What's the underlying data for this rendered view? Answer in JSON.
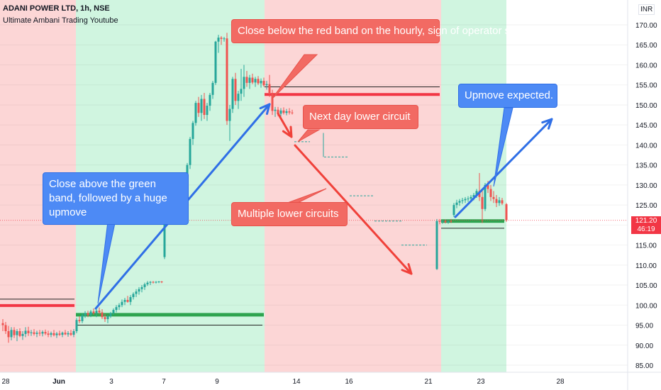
{
  "header": {
    "title": "ADANI POWER LTD, 1h, NSE",
    "subtitle": "Ultimate Ambani Trading Youtube"
  },
  "chart_data": {
    "type": "candlestick",
    "currency": "INR",
    "ylim": [
      82,
      176
    ],
    "y_ticks": [
      85,
      90,
      95,
      100,
      105,
      110,
      115,
      120,
      125,
      130,
      135,
      140,
      145,
      150,
      155,
      160,
      165,
      170
    ],
    "x_ticks": [
      "28",
      "Jun",
      "3",
      "7",
      "9",
      "14",
      "16",
      "21",
      "23",
      "28"
    ],
    "last_price": "121.20",
    "countdown": "46:19",
    "colors": {
      "up": "#26a69a",
      "down": "#ef5350",
      "green_zone": "#d0f5e0",
      "red_zone": "#fcd6d6",
      "blue_arrow": "#2f6fe6",
      "red_arrow": "#f0413a"
    },
    "annotations": {
      "red_band": "Close below the red band on the hourly, sign of operator shorting the stock",
      "next_day": "Next day lower circuit",
      "green_band": "Close above the green band, followed by a huge upmove",
      "multiple": "Multiple lower circuits",
      "upmove": "Upmove expected."
    },
    "candles": [
      {
        "t": 4,
        "o": 95.5,
        "h": 96.5,
        "l": 93.5,
        "c": 95.0
      },
      {
        "t": 8,
        "o": 95.0,
        "h": 95.8,
        "l": 92.8,
        "c": 93.5
      },
      {
        "t": 12,
        "o": 93.5,
        "h": 94.8,
        "l": 90.6,
        "c": 92.0
      },
      {
        "t": 16,
        "o": 92.0,
        "h": 94.5,
        "l": 91.2,
        "c": 93.8
      },
      {
        "t": 20,
        "o": 93.8,
        "h": 94.5,
        "l": 91.8,
        "c": 92.5
      },
      {
        "t": 24,
        "o": 92.5,
        "h": 94.0,
        "l": 91.0,
        "c": 93.5
      },
      {
        "t": 28,
        "o": 93.5,
        "h": 94.2,
        "l": 92.0,
        "c": 92.3
      },
      {
        "t": 32,
        "o": 92.3,
        "h": 93.5,
        "l": 91.3,
        "c": 92.8
      },
      {
        "t": 36,
        "o": 92.8,
        "h": 94.5,
        "l": 92.0,
        "c": 93.6
      },
      {
        "t": 40,
        "o": 93.6,
        "h": 94.6,
        "l": 92.3,
        "c": 93.0
      },
      {
        "t": 44,
        "o": 93.0,
        "h": 93.8,
        "l": 92.3,
        "c": 93.2
      },
      {
        "t": 48,
        "o": 93.2,
        "h": 94.0,
        "l": 92.4,
        "c": 92.8
      },
      {
        "t": 52,
        "o": 92.8,
        "h": 93.6,
        "l": 92.0,
        "c": 93.1
      },
      {
        "t": 56,
        "o": 93.1,
        "h": 93.8,
        "l": 92.3,
        "c": 92.9
      },
      {
        "t": 60,
        "o": 92.9,
        "h": 93.7,
        "l": 92.2,
        "c": 93.3
      },
      {
        "t": 64,
        "o": 93.3,
        "h": 93.9,
        "l": 92.5,
        "c": 92.9
      },
      {
        "t": 68,
        "o": 92.9,
        "h": 93.6,
        "l": 92.0,
        "c": 92.6
      },
      {
        "t": 72,
        "o": 92.6,
        "h": 93.4,
        "l": 92.0,
        "c": 93.0
      },
      {
        "t": 76,
        "o": 93.0,
        "h": 93.8,
        "l": 92.2,
        "c": 92.5
      },
      {
        "t": 80,
        "o": 92.5,
        "h": 93.3,
        "l": 91.8,
        "c": 92.9
      },
      {
        "t": 84,
        "o": 92.9,
        "h": 93.6,
        "l": 92.3,
        "c": 92.6
      },
      {
        "t": 88,
        "o": 92.6,
        "h": 93.4,
        "l": 92.0,
        "c": 93.1
      },
      {
        "t": 92,
        "o": 93.1,
        "h": 93.8,
        "l": 92.5,
        "c": 92.7
      },
      {
        "t": 96,
        "o": 92.7,
        "h": 93.5,
        "l": 92.1,
        "c": 93.0
      },
      {
        "t": 100,
        "o": 93.0,
        "h": 93.8,
        "l": 92.3,
        "c": 92.6
      },
      {
        "t": 104,
        "o": 92.6,
        "h": 94.0,
        "l": 92.0,
        "c": 93.5
      },
      {
        "t": 108,
        "o": 93.5,
        "h": 96.8,
        "l": 93.0,
        "c": 96.3
      },
      {
        "t": 112,
        "o": 96.3,
        "h": 97.2,
        "l": 95.5,
        "c": 96.0
      },
      {
        "t": 116,
        "o": 96.0,
        "h": 98.0,
        "l": 95.5,
        "c": 97.4
      },
      {
        "t": 120,
        "o": 97.4,
        "h": 98.5,
        "l": 96.8,
        "c": 98.0
      },
      {
        "t": 124,
        "o": 98.0,
        "h": 98.6,
        "l": 97.0,
        "c": 97.5
      },
      {
        "t": 128,
        "o": 97.5,
        "h": 98.8,
        "l": 97.0,
        "c": 98.4
      },
      {
        "t": 132,
        "o": 98.4,
        "h": 99.2,
        "l": 97.6,
        "c": 98.0
      },
      {
        "t": 136,
        "o": 98.0,
        "h": 99.0,
        "l": 97.0,
        "c": 98.6
      },
      {
        "t": 140,
        "o": 98.6,
        "h": 99.4,
        "l": 97.8,
        "c": 98.2
      },
      {
        "t": 144,
        "o": 98.2,
        "h": 99.0,
        "l": 96.5,
        "c": 97.0
      },
      {
        "t": 148,
        "o": 97.0,
        "h": 97.8,
        "l": 95.8,
        "c": 96.5
      },
      {
        "t": 152,
        "o": 96.5,
        "h": 97.5,
        "l": 95.5,
        "c": 97.2
      },
      {
        "t": 156,
        "o": 97.2,
        "h": 98.3,
        "l": 96.8,
        "c": 98.0
      },
      {
        "t": 160,
        "o": 98.0,
        "h": 99.2,
        "l": 97.6,
        "c": 98.8
      },
      {
        "t": 164,
        "o": 98.8,
        "h": 100.0,
        "l": 98.2,
        "c": 99.5
      },
      {
        "t": 168,
        "o": 99.5,
        "h": 100.5,
        "l": 98.8,
        "c": 100.0
      },
      {
        "t": 172,
        "o": 100.0,
        "h": 101.4,
        "l": 99.5,
        "c": 100.8
      },
      {
        "t": 176,
        "o": 100.8,
        "h": 101.8,
        "l": 100.0,
        "c": 101.3
      },
      {
        "t": 180,
        "o": 101.3,
        "h": 102.3,
        "l": 100.6,
        "c": 100.8
      },
      {
        "t": 184,
        "o": 100.8,
        "h": 102.5,
        "l": 100.0,
        "c": 102.0
      },
      {
        "t": 188,
        "o": 102.0,
        "h": 103.2,
        "l": 101.4,
        "c": 102.8
      },
      {
        "t": 192,
        "o": 102.8,
        "h": 104.0,
        "l": 102.0,
        "c": 103.4
      },
      {
        "t": 196,
        "o": 103.4,
        "h": 104.5,
        "l": 102.6,
        "c": 104.0
      },
      {
        "t": 200,
        "o": 104.0,
        "h": 105.0,
        "l": 103.2,
        "c": 104.5
      },
      {
        "t": 204,
        "o": 104.5,
        "h": 105.6,
        "l": 103.8,
        "c": 105.2
      },
      {
        "t": 208,
        "o": 105.2,
        "h": 106.0,
        "l": 104.8,
        "c": 105.6
      },
      {
        "t": 212,
        "o": 105.6,
        "h": 106.0,
        "l": 105.0,
        "c": 105.8
      },
      {
        "t": 216,
        "o": 105.8,
        "h": 106.0,
        "l": 105.4,
        "c": 105.7
      },
      {
        "t": 220,
        "o": 105.7,
        "h": 106.0,
        "l": 105.4,
        "c": 105.8
      },
      {
        "t": 224,
        "o": 105.8,
        "h": 106.0,
        "l": 105.5,
        "c": 105.9
      },
      {
        "t": 228,
        "o": 105.9,
        "h": 106.0,
        "l": 105.5,
        "c": 105.7
      },
      {
        "t": 232,
        "o": 112.0,
        "h": 124.0,
        "l": 111.5,
        "c": 123.5
      },
      {
        "t": 236,
        "o": 123.5,
        "h": 127.0,
        "l": 122.0,
        "c": 126.5
      },
      {
        "t": 240,
        "o": 126.5,
        "h": 127.5,
        "l": 125.0,
        "c": 126.0
      },
      {
        "t": 244,
        "o": 126.0,
        "h": 127.8,
        "l": 125.5,
        "c": 127.2
      },
      {
        "t": 248,
        "o": 127.2,
        "h": 128.0,
        "l": 126.6,
        "c": 127.5
      },
      {
        "t": 252,
        "o": 127.5,
        "h": 128.5,
        "l": 127.0,
        "c": 127.9
      },
      {
        "t": 256,
        "o": 127.9,
        "h": 128.6,
        "l": 127.2,
        "c": 128.0
      },
      {
        "t": 260,
        "o": 128.0,
        "h": 131.0,
        "l": 127.5,
        "c": 130.5
      },
      {
        "t": 264,
        "o": 130.5,
        "h": 135.5,
        "l": 130.0,
        "c": 135.0
      },
      {
        "t": 268,
        "o": 135.0,
        "h": 142.0,
        "l": 134.0,
        "c": 141.5
      },
      {
        "t": 272,
        "o": 141.5,
        "h": 146.0,
        "l": 140.0,
        "c": 145.5
      },
      {
        "t": 276,
        "o": 145.5,
        "h": 151.0,
        "l": 144.8,
        "c": 150.5
      },
      {
        "t": 280,
        "o": 150.5,
        "h": 152.0,
        "l": 147.0,
        "c": 148.0
      },
      {
        "t": 284,
        "o": 148.0,
        "h": 152.5,
        "l": 146.0,
        "c": 151.5
      },
      {
        "t": 288,
        "o": 151.5,
        "h": 153.0,
        "l": 146.5,
        "c": 147.5
      },
      {
        "t": 292,
        "o": 147.5,
        "h": 150.5,
        "l": 146.0,
        "c": 149.8
      },
      {
        "t": 296,
        "o": 149.8,
        "h": 153.0,
        "l": 148.5,
        "c": 152.5
      },
      {
        "t": 300,
        "o": 152.5,
        "h": 156.0,
        "l": 151.5,
        "c": 155.5
      },
      {
        "t": 304,
        "o": 155.5,
        "h": 166.0,
        "l": 155.0,
        "c": 165.8
      },
      {
        "t": 308,
        "o": 165.8,
        "h": 167.5,
        "l": 163.0,
        "c": 166.8
      },
      {
        "t": 312,
        "o": 166.8,
        "h": 167.2,
        "l": 165.0,
        "c": 166.5
      },
      {
        "t": 316,
        "o": 166.5,
        "h": 167.0,
        "l": 165.8,
        "c": 166.6
      },
      {
        "t": 320,
        "o": 166.6,
        "h": 168.0,
        "l": 145.0,
        "c": 146.0
      },
      {
        "t": 324,
        "o": 146.0,
        "h": 150.0,
        "l": 141.0,
        "c": 149.0
      },
      {
        "t": 328,
        "o": 149.0,
        "h": 157.0,
        "l": 148.0,
        "c": 156.5
      },
      {
        "t": 332,
        "o": 156.5,
        "h": 158.0,
        "l": 150.0,
        "c": 151.0
      },
      {
        "t": 336,
        "o": 151.0,
        "h": 153.5,
        "l": 149.0,
        "c": 152.8
      },
      {
        "t": 340,
        "o": 152.8,
        "h": 159.0,
        "l": 151.0,
        "c": 154.0
      },
      {
        "t": 344,
        "o": 154.0,
        "h": 160.0,
        "l": 152.0,
        "c": 157.0
      },
      {
        "t": 348,
        "o": 157.0,
        "h": 158.5,
        "l": 154.5,
        "c": 155.5
      },
      {
        "t": 352,
        "o": 155.5,
        "h": 157.5,
        "l": 154.0,
        "c": 156.8
      },
      {
        "t": 356,
        "o": 156.8,
        "h": 157.8,
        "l": 155.2,
        "c": 155.6
      },
      {
        "t": 360,
        "o": 155.6,
        "h": 157.0,
        "l": 154.5,
        "c": 156.5
      },
      {
        "t": 364,
        "o": 156.5,
        "h": 157.2,
        "l": 155.0,
        "c": 155.4
      },
      {
        "t": 368,
        "o": 155.4,
        "h": 156.6,
        "l": 154.3,
        "c": 156.0
      },
      {
        "t": 372,
        "o": 156.0,
        "h": 156.8,
        "l": 154.5,
        "c": 154.9
      },
      {
        "t": 376,
        "o": 154.9,
        "h": 156.0,
        "l": 153.8,
        "c": 155.2
      },
      {
        "t": 380,
        "o": 155.2,
        "h": 157.5,
        "l": 152.0,
        "c": 153.0
      },
      {
        "t": 384,
        "o": 153.0,
        "h": 153.8,
        "l": 147.5,
        "c": 148.5
      },
      {
        "t": 388,
        "o": 148.5,
        "h": 149.5,
        "l": 147.0,
        "c": 148.8
      },
      {
        "t": 392,
        "o": 148.8,
        "h": 149.5,
        "l": 147.2,
        "c": 147.8
      },
      {
        "t": 396,
        "o": 147.8,
        "h": 149.2,
        "l": 147.0,
        "c": 148.6
      },
      {
        "t": 400,
        "o": 148.6,
        "h": 149.4,
        "l": 147.6,
        "c": 148.0
      },
      {
        "t": 404,
        "o": 148.0,
        "h": 149.0,
        "l": 147.4,
        "c": 148.4
      },
      {
        "t": 408,
        "o": 148.4,
        "h": 149.2,
        "l": 147.6,
        "c": 148.1
      },
      {
        "t": 412,
        "o": 148.1,
        "h": 148.8,
        "l": 147.6,
        "c": 148.0
      },
      {
        "t": 616,
        "o": 109.0,
        "h": 121.5,
        "l": 108.8,
        "c": 121.0
      },
      {
        "t": 620,
        "o": 121.0,
        "h": 121.5,
        "l": 120.2,
        "c": 120.8
      },
      {
        "t": 624,
        "o": 120.8,
        "h": 121.3,
        "l": 120.3,
        "c": 121.0
      },
      {
        "t": 628,
        "o": 121.0,
        "h": 121.4,
        "l": 120.4,
        "c": 120.7
      },
      {
        "t": 632,
        "o": 120.7,
        "h": 121.2,
        "l": 120.3,
        "c": 121.0
      },
      {
        "t": 636,
        "o": 121.0,
        "h": 121.5,
        "l": 120.5,
        "c": 120.9
      },
      {
        "t": 640,
        "o": 122.5,
        "h": 125.5,
        "l": 122.0,
        "c": 125.0
      },
      {
        "t": 644,
        "o": 125.0,
        "h": 126.3,
        "l": 124.2,
        "c": 125.6
      },
      {
        "t": 648,
        "o": 125.6,
        "h": 126.5,
        "l": 124.8,
        "c": 126.0
      },
      {
        "t": 652,
        "o": 126.0,
        "h": 126.8,
        "l": 125.3,
        "c": 126.2
      },
      {
        "t": 656,
        "o": 126.2,
        "h": 127.0,
        "l": 125.5,
        "c": 126.5
      },
      {
        "t": 660,
        "o": 126.5,
        "h": 127.2,
        "l": 125.8,
        "c": 126.6
      },
      {
        "t": 664,
        "o": 126.6,
        "h": 127.5,
        "l": 126.0,
        "c": 127.0
      },
      {
        "t": 668,
        "o": 127.0,
        "h": 128.0,
        "l": 126.2,
        "c": 127.5
      },
      {
        "t": 672,
        "o": 127.5,
        "h": 129.0,
        "l": 126.8,
        "c": 128.5
      },
      {
        "t": 676,
        "o": 128.5,
        "h": 133.0,
        "l": 126.0,
        "c": 127.0
      },
      {
        "t": 680,
        "o": 127.0,
        "h": 129.0,
        "l": 120.5,
        "c": 124.0
      },
      {
        "t": 684,
        "o": 124.0,
        "h": 130.5,
        "l": 123.5,
        "c": 130.0
      },
      {
        "t": 688,
        "o": 130.0,
        "h": 131.0,
        "l": 128.0,
        "c": 129.0
      },
      {
        "t": 692,
        "o": 129.0,
        "h": 130.0,
        "l": 126.0,
        "c": 127.0
      },
      {
        "t": 696,
        "o": 127.0,
        "h": 128.5,
        "l": 125.5,
        "c": 126.5
      },
      {
        "t": 700,
        "o": 126.5,
        "h": 127.5,
        "l": 124.5,
        "c": 125.5
      },
      {
        "t": 704,
        "o": 125.5,
        "h": 127.0,
        "l": 124.8,
        "c": 126.2
      },
      {
        "t": 708,
        "o": 126.2,
        "h": 126.8,
        "l": 125.0,
        "c": 125.4
      },
      {
        "t": 714,
        "o": 125.2,
        "h": 125.5,
        "l": 120.8,
        "c": 121.2
      }
    ]
  }
}
